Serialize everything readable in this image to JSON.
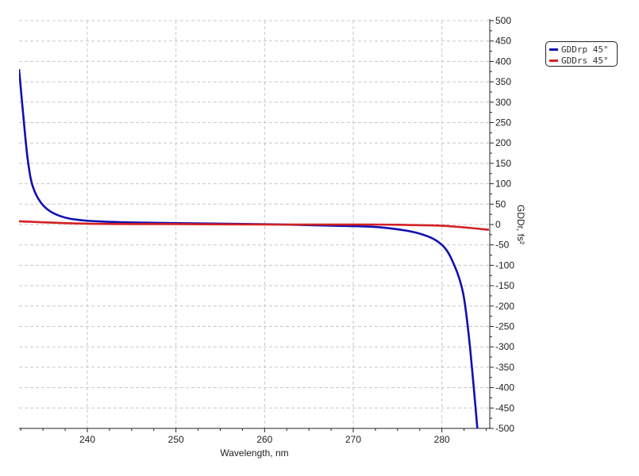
{
  "chart_data": {
    "type": "line",
    "title": "",
    "xlabel": "Wavelength, nm",
    "ylabel": "GDDr, fs²",
    "xlim": [
      232.3,
      285.4
    ],
    "ylim": [
      -500,
      500
    ],
    "x_ticks": [
      240,
      250,
      260,
      270,
      280
    ],
    "y_ticks": [
      500,
      450,
      400,
      350,
      300,
      250,
      200,
      150,
      100,
      50,
      0,
      -50,
      -100,
      -150,
      -200,
      -250,
      -300,
      -350,
      -400,
      -450,
      -500
    ],
    "y_axis_side": "right",
    "grid": true,
    "legend_position": "top-right outside",
    "series": [
      {
        "name": "GDDrp 45°",
        "color": "#1010b0",
        "x": [
          232.3,
          232.84,
          233.3,
          233.9,
          235.1,
          236.9,
          239.6,
          245,
          255,
          262,
          268,
          273.1,
          277.6,
          280.1,
          281.5,
          282.4,
          283.0,
          283.5,
          284.0
        ],
        "y": [
          381,
          253,
          156,
          90,
          45,
          21,
          10,
          5,
          2,
          0,
          -3,
          -7,
          -23,
          -52,
          -105,
          -169,
          -266,
          -377,
          -500
        ]
      },
      {
        "name": "GDDrs 45°",
        "color": "#d42020",
        "x": [
          232.3,
          240,
          250,
          260,
          272,
          276,
          280,
          283,
          285.3
        ],
        "y": [
          8,
          2,
          1,
          0,
          0,
          -1,
          -3,
          -8,
          -13
        ]
      }
    ]
  }
}
